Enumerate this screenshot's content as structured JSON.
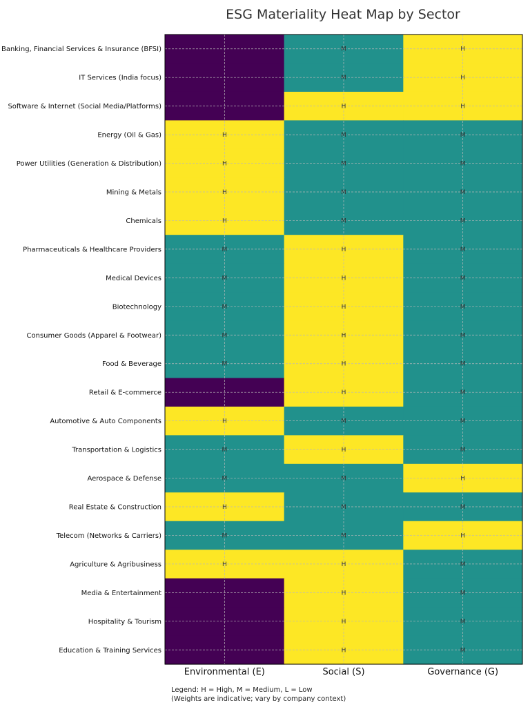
{
  "chart_data": {
    "type": "heatmap",
    "title": "ESG Materiality Heat Map by Sector",
    "columns": [
      "Environmental (E)",
      "Social (S)",
      "Governance (G)"
    ],
    "rows": [
      "Banking, Financial Services & Insurance (BFSI)",
      "IT Services (India focus)",
      "Software & Internet (Social Media/Platforms)",
      "Energy (Oil & Gas)",
      "Power Utilities (Generation & Distribution)",
      "Mining & Metals",
      "Chemicals",
      "Pharmaceuticals & Healthcare Providers",
      "Medical Devices",
      "Biotechnology",
      "Consumer Goods (Apparel & Footwear)",
      "Food & Beverage",
      "Retail & E-commerce",
      "Automotive & Auto Components",
      "Transportation & Logistics",
      "Aerospace & Defense",
      "Real Estate & Construction",
      "Telecom (Networks & Carriers)",
      "Agriculture & Agribusiness",
      "Media & Entertainment",
      "Hospitality & Tourism",
      "Education & Training Services"
    ],
    "values": [
      [
        "L",
        "M",
        "H"
      ],
      [
        "L",
        "M",
        "H"
      ],
      [
        "L",
        "H",
        "H"
      ],
      [
        "H",
        "M",
        "M"
      ],
      [
        "H",
        "M",
        "M"
      ],
      [
        "H",
        "M",
        "M"
      ],
      [
        "H",
        "M",
        "M"
      ],
      [
        "M",
        "H",
        "M"
      ],
      [
        "M",
        "H",
        "M"
      ],
      [
        "M",
        "H",
        "M"
      ],
      [
        "M",
        "H",
        "M"
      ],
      [
        "M",
        "H",
        "M"
      ],
      [
        "L",
        "H",
        "M"
      ],
      [
        "H",
        "M",
        "M"
      ],
      [
        "M",
        "H",
        "M"
      ],
      [
        "M",
        "M",
        "H"
      ],
      [
        "H",
        "M",
        "M"
      ],
      [
        "M",
        "M",
        "H"
      ],
      [
        "H",
        "H",
        "M"
      ],
      [
        "L",
        "H",
        "M"
      ],
      [
        "L",
        "H",
        "M"
      ],
      [
        "L",
        "H",
        "M"
      ]
    ],
    "shown_labels": [
      "H",
      "M"
    ],
    "colors": {
      "H": "#fde725",
      "M": "#21918c",
      "L": "#440154"
    },
    "grid": true,
    "legend_line1": "Legend: H = High, M = Medium, L = Low",
    "legend_line2": "(Weights are indicative; vary by company context)"
  }
}
